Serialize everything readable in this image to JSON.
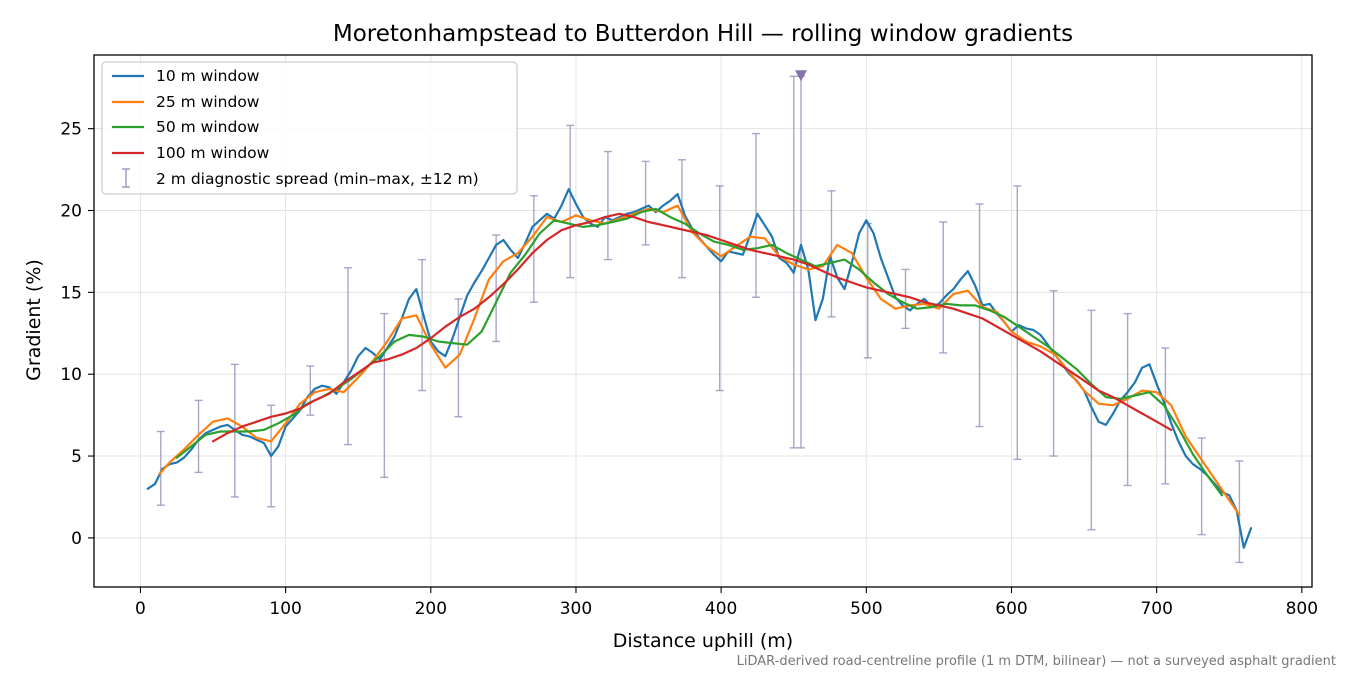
{
  "chart_data": {
    "type": "line",
    "title": "Moretonhampstead to Butterdon Hill — rolling window gradients",
    "xlabel": "Distance uphill (m)",
    "ylabel": "Gradient (%)",
    "xlim": [
      -32,
      807
    ],
    "ylim": [
      -3,
      29.5
    ],
    "xticks": [
      0,
      100,
      200,
      300,
      400,
      500,
      600,
      700,
      800
    ],
    "yticks": [
      0,
      5,
      10,
      15,
      20,
      25
    ],
    "grid": true,
    "legend_position": "top-left",
    "footnote": "LiDAR-derived road-centreline profile (1 m DTM, bilinear) — not a surveyed asphalt gradient",
    "series": [
      {
        "name": "10 m window",
        "color": "#1f77b4",
        "key": "w10",
        "x": [
          5,
          10,
          15,
          20,
          25,
          30,
          35,
          40,
          45,
          50,
          55,
          60,
          65,
          70,
          75,
          80,
          85,
          90,
          95,
          100,
          105,
          110,
          115,
          120,
          125,
          130,
          135,
          140,
          145,
          150,
          155,
          160,
          165,
          170,
          175,
          180,
          185,
          190,
          195,
          200,
          205,
          210,
          215,
          220,
          225,
          230,
          235,
          240,
          245,
          250,
          255,
          260,
          265,
          270,
          275,
          280,
          285,
          290,
          295,
          300,
          305,
          310,
          315,
          320,
          325,
          330,
          335,
          340,
          345,
          350,
          355,
          360,
          365,
          370,
          375,
          380,
          385,
          390,
          395,
          400,
          405,
          410,
          415,
          420,
          425,
          430,
          435,
          440,
          445,
          450,
          455,
          460,
          465,
          470,
          475,
          480,
          485,
          490,
          495,
          500,
          505,
          510,
          515,
          520,
          525,
          530,
          535,
          540,
          545,
          550,
          555,
          560,
          565,
          570,
          575,
          580,
          585,
          590,
          595,
          600,
          605,
          610,
          615,
          620,
          625,
          630,
          635,
          640,
          645,
          650,
          655,
          660,
          665,
          670,
          675,
          680,
          685,
          690,
          695,
          700,
          705,
          710,
          715,
          720,
          725,
          730,
          735,
          740,
          745,
          750,
          755,
          760,
          765
        ],
        "y": [
          3.0,
          3.3,
          4.2,
          4.5,
          4.6,
          4.9,
          5.4,
          6.0,
          6.4,
          6.6,
          6.8,
          6.9,
          6.6,
          6.3,
          6.2,
          6.0,
          5.8,
          5.0,
          5.6,
          6.8,
          7.3,
          7.8,
          8.6,
          9.1,
          9.3,
          9.2,
          8.8,
          9.5,
          10.2,
          11.1,
          11.6,
          11.3,
          10.9,
          11.6,
          12.3,
          13.4,
          14.6,
          15.2,
          13.6,
          12.0,
          11.4,
          11.1,
          12.2,
          13.5,
          14.8,
          15.6,
          16.3,
          17.1,
          17.9,
          18.2,
          17.6,
          17.1,
          18.0,
          19.0,
          19.4,
          19.8,
          19.5,
          20.3,
          21.3,
          20.4,
          19.6,
          19.2,
          19.0,
          19.6,
          19.4,
          19.6,
          19.8,
          19.9,
          20.1,
          20.3,
          19.9,
          20.3,
          20.6,
          21.0,
          19.7,
          18.9,
          18.3,
          17.8,
          17.3,
          16.9,
          17.5,
          17.4,
          17.3,
          18.5,
          19.8,
          19.1,
          18.4,
          17.1,
          16.8,
          16.2,
          17.9,
          16.4,
          13.3,
          14.6,
          17.2,
          15.9,
          15.2,
          16.8,
          18.6,
          19.4,
          18.6,
          17.1,
          15.9,
          14.7,
          14.2,
          13.9,
          14.3,
          14.6,
          14.1,
          14.3,
          14.8,
          15.2,
          15.8,
          16.3,
          15.4,
          14.2,
          14.3,
          13.7,
          13.2,
          12.6,
          13.0,
          12.8,
          12.7,
          12.4,
          11.8,
          11.2,
          10.6,
          10.0,
          9.6,
          9.0,
          8.0,
          7.1,
          6.9,
          7.6,
          8.4,
          8.9,
          9.5,
          10.4,
          10.6,
          9.4,
          8.3,
          7.0,
          5.9,
          5.0,
          4.5,
          4.2,
          3.8,
          3.3,
          2.8,
          2.6,
          1.7,
          -0.6,
          0.6
        ]
      },
      {
        "name": "25 m window",
        "color": "#ff7f0e",
        "key": "w25",
        "x": [
          13,
          20,
          30,
          40,
          50,
          60,
          70,
          80,
          90,
          100,
          110,
          120,
          130,
          140,
          150,
          160,
          170,
          180,
          190,
          200,
          210,
          220,
          230,
          240,
          250,
          260,
          270,
          280,
          290,
          300,
          310,
          320,
          330,
          340,
          350,
          360,
          370,
          380,
          390,
          400,
          410,
          420,
          430,
          440,
          450,
          460,
          470,
          480,
          490,
          500,
          510,
          520,
          530,
          540,
          550,
          560,
          570,
          580,
          590,
          600,
          610,
          620,
          630,
          640,
          650,
          660,
          670,
          680,
          690,
          700,
          710,
          720,
          730,
          740,
          750,
          757
        ],
        "y": [
          3.9,
          4.6,
          5.4,
          6.3,
          7.1,
          7.3,
          6.8,
          6.1,
          5.9,
          7.0,
          8.2,
          8.9,
          9.1,
          8.9,
          9.8,
          10.8,
          12.0,
          13.4,
          13.6,
          11.8,
          10.4,
          11.2,
          13.4,
          15.8,
          16.9,
          17.4,
          18.4,
          19.6,
          19.3,
          19.7,
          19.4,
          19.2,
          19.5,
          19.8,
          20.1,
          19.9,
          20.3,
          18.7,
          17.8,
          17.2,
          17.8,
          18.4,
          18.3,
          17.2,
          16.7,
          16.4,
          16.6,
          17.9,
          17.4,
          15.9,
          14.6,
          14.0,
          14.2,
          14.3,
          14.0,
          14.9,
          15.1,
          14.1,
          13.8,
          12.6,
          12.0,
          11.7,
          11.2,
          10.1,
          9.0,
          8.2,
          8.1,
          8.5,
          9.0,
          8.9,
          8.1,
          6.2,
          4.9,
          3.6,
          2.3,
          1.4
        ]
      },
      {
        "name": "50 m window",
        "color": "#2ca02c",
        "key": "w50",
        "x": [
          25,
          35,
          45,
          55,
          65,
          75,
          85,
          95,
          105,
          115,
          125,
          135,
          145,
          155,
          165,
          175,
          185,
          195,
          205,
          215,
          225,
          235,
          245,
          255,
          265,
          275,
          285,
          295,
          305,
          315,
          325,
          335,
          345,
          355,
          365,
          375,
          385,
          395,
          405,
          415,
          425,
          435,
          445,
          455,
          465,
          475,
          485,
          495,
          505,
          515,
          525,
          535,
          545,
          555,
          565,
          575,
          585,
          595,
          605,
          615,
          625,
          635,
          645,
          655,
          665,
          675,
          685,
          695,
          705,
          715,
          725,
          735,
          745
        ],
        "y": [
          4.9,
          5.6,
          6.3,
          6.5,
          6.5,
          6.5,
          6.6,
          7.0,
          7.5,
          8.2,
          8.6,
          9.1,
          9.7,
          10.4,
          11.1,
          12.0,
          12.4,
          12.3,
          12.0,
          11.9,
          11.8,
          12.6,
          14.4,
          16.2,
          17.3,
          18.6,
          19.4,
          19.2,
          19.0,
          19.1,
          19.3,
          19.5,
          19.9,
          20.1,
          19.6,
          19.2,
          18.6,
          18.1,
          17.9,
          17.6,
          17.7,
          17.9,
          17.4,
          17.0,
          16.6,
          16.8,
          17.0,
          16.4,
          15.6,
          14.9,
          14.4,
          14.0,
          14.1,
          14.3,
          14.2,
          14.2,
          13.9,
          13.5,
          12.9,
          12.3,
          11.7,
          11.0,
          10.3,
          9.4,
          8.6,
          8.5,
          8.7,
          8.9,
          8.1,
          6.7,
          5.1,
          3.8,
          2.6
        ]
      },
      {
        "name": "100 m window",
        "color": "#d62728",
        "key": "w100",
        "x": [
          50,
          60,
          70,
          80,
          90,
          100,
          110,
          120,
          130,
          140,
          150,
          160,
          170,
          180,
          190,
          200,
          210,
          220,
          230,
          240,
          250,
          260,
          270,
          280,
          290,
          300,
          310,
          320,
          330,
          340,
          350,
          360,
          370,
          380,
          390,
          400,
          410,
          420,
          430,
          440,
          450,
          460,
          470,
          480,
          490,
          500,
          510,
          520,
          530,
          540,
          550,
          560,
          570,
          580,
          590,
          600,
          610,
          620,
          630,
          640,
          650,
          660,
          670,
          680,
          690,
          700,
          710
        ],
        "y": [
          5.9,
          6.4,
          6.8,
          7.1,
          7.4,
          7.6,
          7.9,
          8.4,
          8.8,
          9.5,
          10.1,
          10.7,
          10.9,
          11.2,
          11.6,
          12.2,
          12.9,
          13.5,
          14.0,
          14.7,
          15.5,
          16.4,
          17.4,
          18.2,
          18.8,
          19.1,
          19.3,
          19.6,
          19.8,
          19.6,
          19.3,
          19.1,
          18.9,
          18.7,
          18.5,
          18.2,
          17.9,
          17.6,
          17.4,
          17.2,
          17.0,
          16.7,
          16.3,
          15.9,
          15.6,
          15.3,
          15.1,
          14.9,
          14.7,
          14.4,
          14.2,
          14.0,
          13.7,
          13.4,
          12.9,
          12.4,
          11.9,
          11.4,
          10.8,
          10.2,
          9.6,
          9.0,
          8.6,
          8.1,
          7.6,
          7.1,
          6.6
        ]
      }
    ],
    "errorbars": {
      "name": "2 m diagnostic spread (min–max, ±12 m)",
      "color": "#9a96bf",
      "x": [
        14,
        40,
        65,
        90,
        117,
        143,
        168,
        194,
        219,
        245,
        271,
        296,
        322,
        348,
        373,
        399,
        424,
        450,
        455,
        476,
        501,
        527,
        553,
        578,
        604,
        629,
        655,
        680,
        706,
        731,
        757
      ],
      "low": [
        2.0,
        4.0,
        2.5,
        1.9,
        7.5,
        5.7,
        3.7,
        9.0,
        7.4,
        12.0,
        14.4,
        15.9,
        17.0,
        17.9,
        15.9,
        9.0,
        14.7,
        5.5,
        5.5,
        13.5,
        11.0,
        12.8,
        11.3,
        6.8,
        4.8,
        5.0,
        0.5,
        3.2,
        3.3,
        0.2,
        -1.5
      ],
      "high": [
        6.5,
        8.4,
        10.6,
        8.1,
        10.5,
        16.5,
        13.7,
        17.0,
        14.6,
        18.5,
        20.9,
        25.2,
        23.6,
        23.0,
        23.1,
        21.5,
        24.7,
        28.2,
        28.2,
        21.2,
        19.2,
        16.4,
        19.3,
        20.4,
        21.5,
        15.1,
        13.9,
        13.7,
        11.6,
        6.1,
        4.7
      ],
      "clipped_marker": {
        "x": 455,
        "y": 28.2,
        "color": "#8673a8"
      }
    }
  }
}
